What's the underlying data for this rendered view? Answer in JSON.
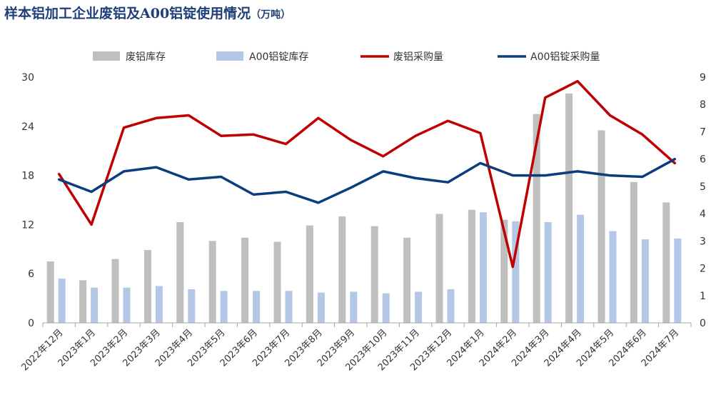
{
  "title": "样本铝加工企业废铝及A00铝锭使用情况",
  "unit": "（万吨）",
  "colors": {
    "title": "#1f3f7a",
    "scrap_inventory": "#bfbfbf",
    "a00_inventory": "#b4c7e7",
    "scrap_purchase": "#c00000",
    "a00_purchase": "#0b3c7e"
  },
  "chart_data": {
    "type": "bar",
    "categories": [
      "2022年12月",
      "2023年1月",
      "2023年2月",
      "2023年3月",
      "2023年4月",
      "2023年5月",
      "2023年6月",
      "2023年7月",
      "2023年8月",
      "2023年9月",
      "2023年10月",
      "2023年11月",
      "2023年12月",
      "2024年1月",
      "2024年2月",
      "2024年3月",
      "2024年4月",
      "2024年5月",
      "2024年6月",
      "2024年7月"
    ],
    "left_axis": {
      "min": 0,
      "max": 30,
      "ticks": [
        0,
        6,
        12,
        18,
        24,
        30
      ]
    },
    "right_axis": {
      "min": 0,
      "max": 9,
      "ticks": [
        0,
        1,
        2,
        3,
        4,
        5,
        6,
        7,
        8,
        9
      ]
    },
    "legend_position": "top",
    "grid": false,
    "series": [
      {
        "name": "废铝库存",
        "type": "bar",
        "axis": "left",
        "color": "#bfbfbf",
        "values": [
          7.5,
          5.2,
          7.8,
          8.9,
          12.3,
          10.0,
          10.4,
          9.9,
          11.9,
          13.0,
          11.8,
          10.4,
          13.3,
          13.8,
          12.6,
          25.5,
          28.0,
          23.5,
          17.2,
          14.7
        ]
      },
      {
        "name": "A00铝锭库存",
        "type": "bar",
        "axis": "left",
        "color": "#b4c7e7",
        "values": [
          5.4,
          4.3,
          4.3,
          4.5,
          4.1,
          3.9,
          3.9,
          3.9,
          3.7,
          3.8,
          3.6,
          3.8,
          4.1,
          13.5,
          12.4,
          12.3,
          13.2,
          11.2,
          10.2,
          10.3
        ]
      },
      {
        "name": "废铝采购量",
        "type": "line",
        "axis": "right",
        "color": "#c00000",
        "values": [
          5.45,
          3.6,
          7.15,
          7.5,
          7.6,
          6.85,
          6.9,
          6.55,
          7.5,
          6.7,
          6.1,
          6.85,
          7.4,
          6.95,
          2.05,
          8.25,
          8.85,
          7.6,
          6.9,
          5.85
        ]
      },
      {
        "name": "A00铝锭采购量",
        "type": "line",
        "axis": "right",
        "color": "#0b3c7e",
        "values": [
          5.25,
          4.8,
          5.55,
          5.7,
          5.25,
          5.35,
          4.7,
          4.8,
          4.4,
          4.95,
          5.55,
          5.3,
          5.15,
          5.85,
          5.4,
          5.4,
          5.55,
          5.4,
          5.35,
          6.0
        ]
      }
    ]
  }
}
